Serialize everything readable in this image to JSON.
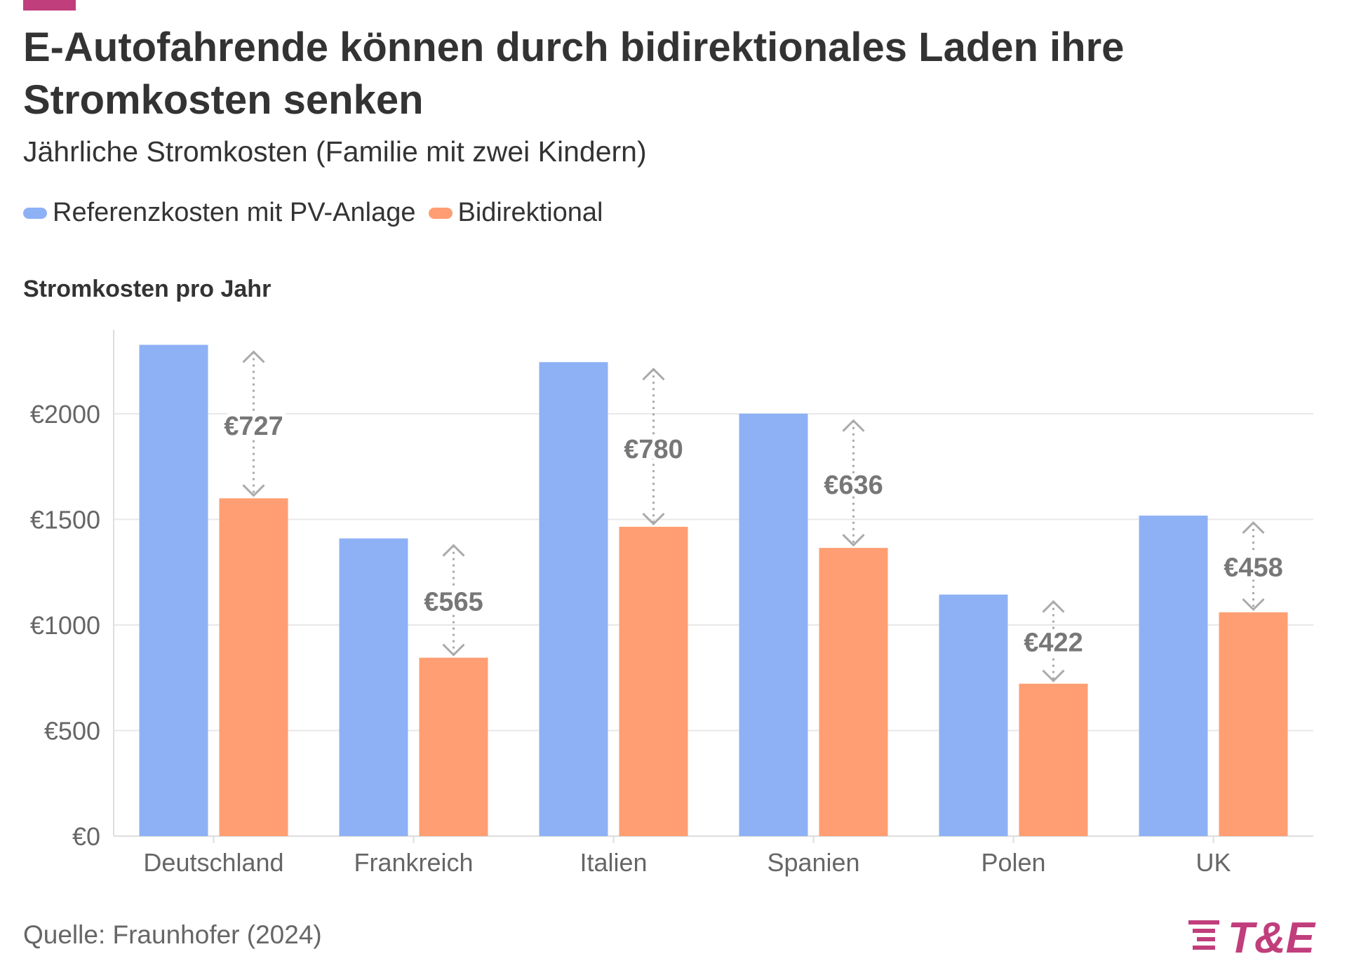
{
  "title": "E-Autofahrende können durch bidirektionales Laden ihre Stromkosten senken",
  "subtitle": "Jährliche Stromkosten (Familie mit zwei Kindern)",
  "legend": [
    {
      "label": "Referenzkosten mit PV-Anlage",
      "color": "#8eb1f5"
    },
    {
      "label": "Bidirektional",
      "color": "#fe9e72"
    }
  ],
  "axis_title": "Stromkosten pro Jahr",
  "source": "Quelle: Fraunhofer (2024)",
  "logo": {
    "text": "T&E",
    "color": "#c13e7c"
  },
  "chart_data": {
    "type": "bar",
    "categories": [
      "Deutschland",
      "Frankreich",
      "Italien",
      "Spanien",
      "Polen",
      "UK"
    ],
    "series": [
      {
        "name": "Referenzkosten mit PV-Anlage",
        "values": [
          2327,
          1410,
          2245,
          2001,
          1144,
          1518
        ],
        "color": "#8eb1f5"
      },
      {
        "name": "Bidirektional",
        "values": [
          1600,
          845,
          1465,
          1365,
          722,
          1060
        ],
        "color": "#fe9e72"
      }
    ],
    "differences": [
      "€727",
      "€565",
      "€780",
      "€636",
      "€422",
      "€458"
    ],
    "yticks": [
      {
        "value": 0,
        "label": "€0"
      },
      {
        "value": 500,
        "label": "€500"
      },
      {
        "value": 1000,
        "label": "€1000"
      },
      {
        "value": 1500,
        "label": "€1500"
      },
      {
        "value": 2000,
        "label": "€2000"
      }
    ],
    "ylim": [
      0,
      2400
    ],
    "grid": true,
    "legend_position": "top-left"
  }
}
